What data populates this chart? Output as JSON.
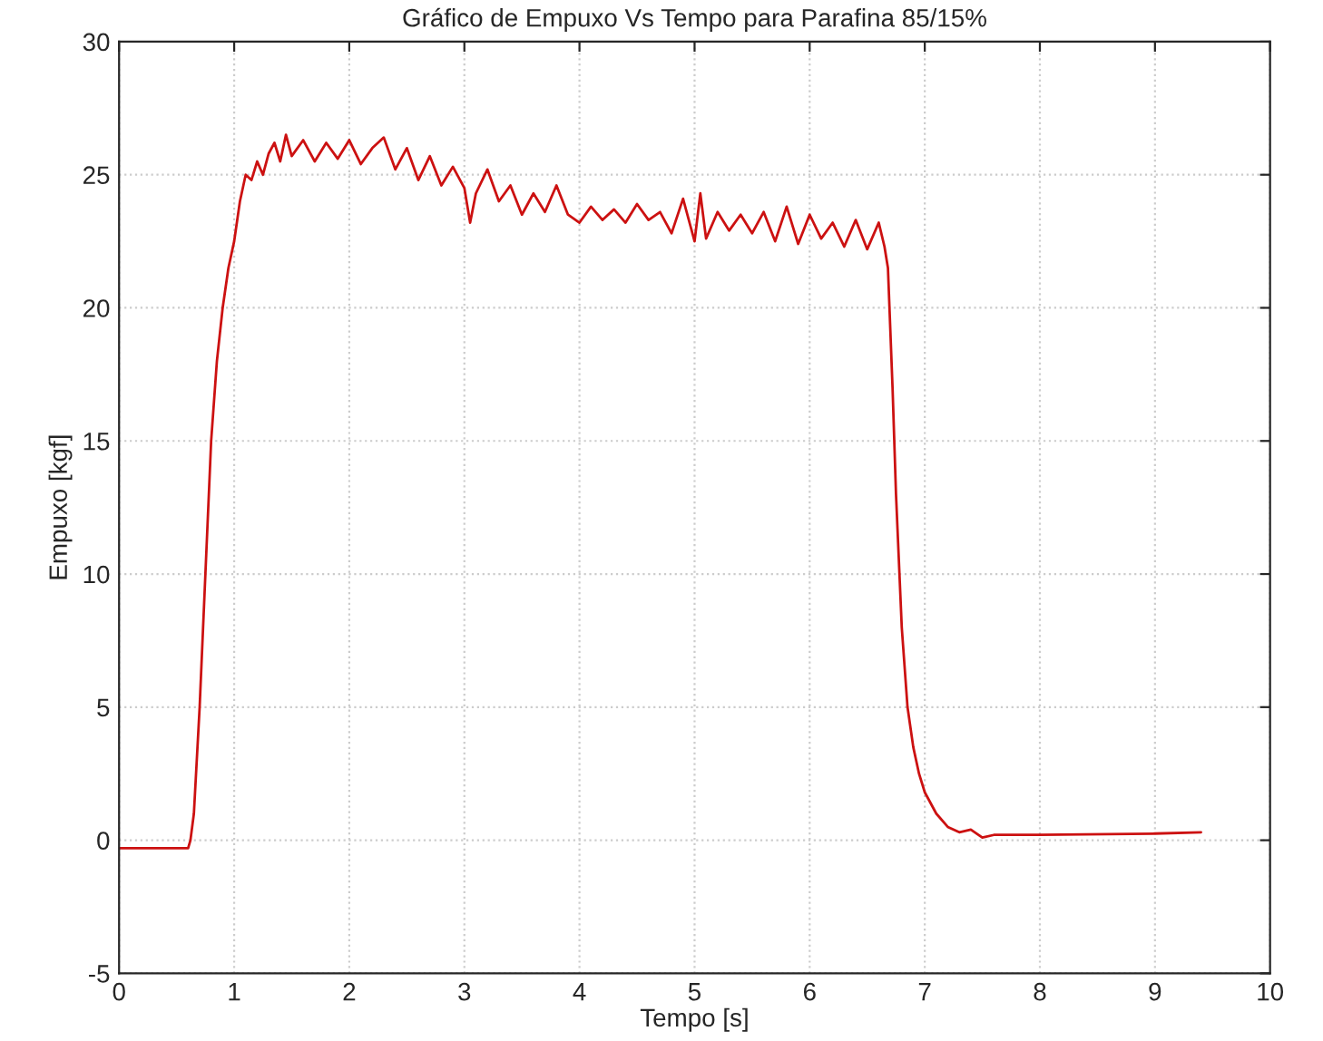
{
  "chart_data": {
    "type": "line",
    "title": "Gráfico de Empuxo Vs Tempo para Parafina 85/15%",
    "xlabel": "Tempo [s]",
    "ylabel": "Empuxo [kgf]",
    "series": [
      {
        "color": "#cc1111",
        "x": [
          0,
          0.3,
          0.6,
          0.62,
          0.65,
          0.7,
          0.75,
          0.8,
          0.85,
          0.9,
          0.95,
          1.0,
          1.05,
          1.1,
          1.15,
          1.2,
          1.25,
          1.3,
          1.35,
          1.4,
          1.45,
          1.5,
          1.6,
          1.7,
          1.8,
          1.9,
          2.0,
          2.1,
          2.2,
          2.3,
          2.4,
          2.5,
          2.6,
          2.7,
          2.8,
          2.9,
          3.0,
          3.05,
          3.1,
          3.2,
          3.3,
          3.4,
          3.5,
          3.6,
          3.7,
          3.8,
          3.9,
          4.0,
          4.1,
          4.2,
          4.3,
          4.4,
          4.5,
          4.6,
          4.7,
          4.8,
          4.9,
          5.0,
          5.05,
          5.1,
          5.2,
          5.3,
          5.4,
          5.5,
          5.6,
          5.7,
          5.8,
          5.9,
          6.0,
          6.1,
          6.2,
          6.3,
          6.4,
          6.5,
          6.6,
          6.65,
          6.68,
          6.72,
          6.75,
          6.8,
          6.85,
          6.9,
          6.95,
          7.0,
          7.1,
          7.2,
          7.3,
          7.4,
          7.5,
          7.6,
          8.0,
          9.0,
          9.4
        ],
        "values": [
          -0.3,
          -0.3,
          -0.3,
          0,
          1,
          5,
          10,
          15,
          18,
          20,
          21.5,
          22.5,
          24,
          25,
          24.8,
          25.5,
          25,
          25.8,
          26.2,
          25.5,
          26.5,
          25.7,
          26.3,
          25.5,
          26.2,
          25.6,
          26.3,
          25.4,
          26,
          26.4,
          25.2,
          26,
          24.8,
          25.7,
          24.6,
          25.3,
          24.5,
          23.2,
          24.3,
          25.2,
          24,
          24.6,
          23.5,
          24.3,
          23.6,
          24.6,
          23.5,
          23.2,
          23.8,
          23.3,
          23.7,
          23.2,
          23.9,
          23.3,
          23.6,
          22.8,
          24.1,
          22.5,
          24.3,
          22.6,
          23.6,
          22.9,
          23.5,
          22.8,
          23.6,
          22.5,
          23.8,
          22.4,
          23.5,
          22.6,
          23.2,
          22.3,
          23.3,
          22.2,
          23.2,
          22.3,
          21.5,
          17,
          13,
          8,
          5,
          3.5,
          2.5,
          1.8,
          1,
          0.5,
          0.3,
          0.4,
          0.1,
          0.2,
          0.2,
          0.25,
          0.3
        ]
      }
    ],
    "xlim": [
      0,
      10
    ],
    "ylim": [
      -5,
      30
    ],
    "xticks": [
      0,
      1,
      2,
      3,
      4,
      5,
      6,
      7,
      8,
      9,
      10
    ],
    "yticks": [
      -5,
      0,
      5,
      10,
      15,
      20,
      25,
      30
    ],
    "grid": true
  }
}
